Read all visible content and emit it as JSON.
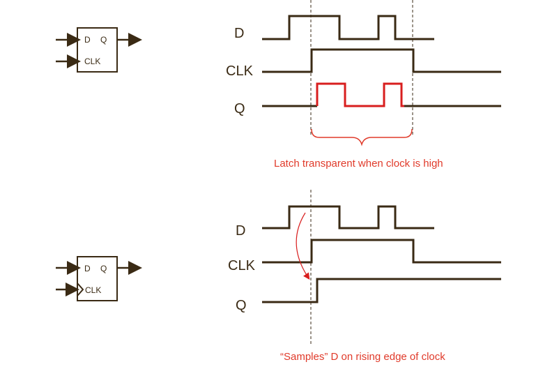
{
  "latch": {
    "box_d": "D",
    "box_q": "Q",
    "box_clk": "CLK",
    "signal_d": "D",
    "signal_clk": "CLK",
    "signal_q": "Q",
    "caption": "Latch transparent when clock is high"
  },
  "flipflop": {
    "box_d": "D",
    "box_q": "Q",
    "box_clk": "CLK",
    "signal_d": "D",
    "signal_clk": "CLK",
    "signal_q": "Q",
    "caption": "“Samples” D on rising edge of clock"
  },
  "colors": {
    "wire": "#3a2a14",
    "highlight": "#d81e1e",
    "caption": "#e03a2a"
  }
}
